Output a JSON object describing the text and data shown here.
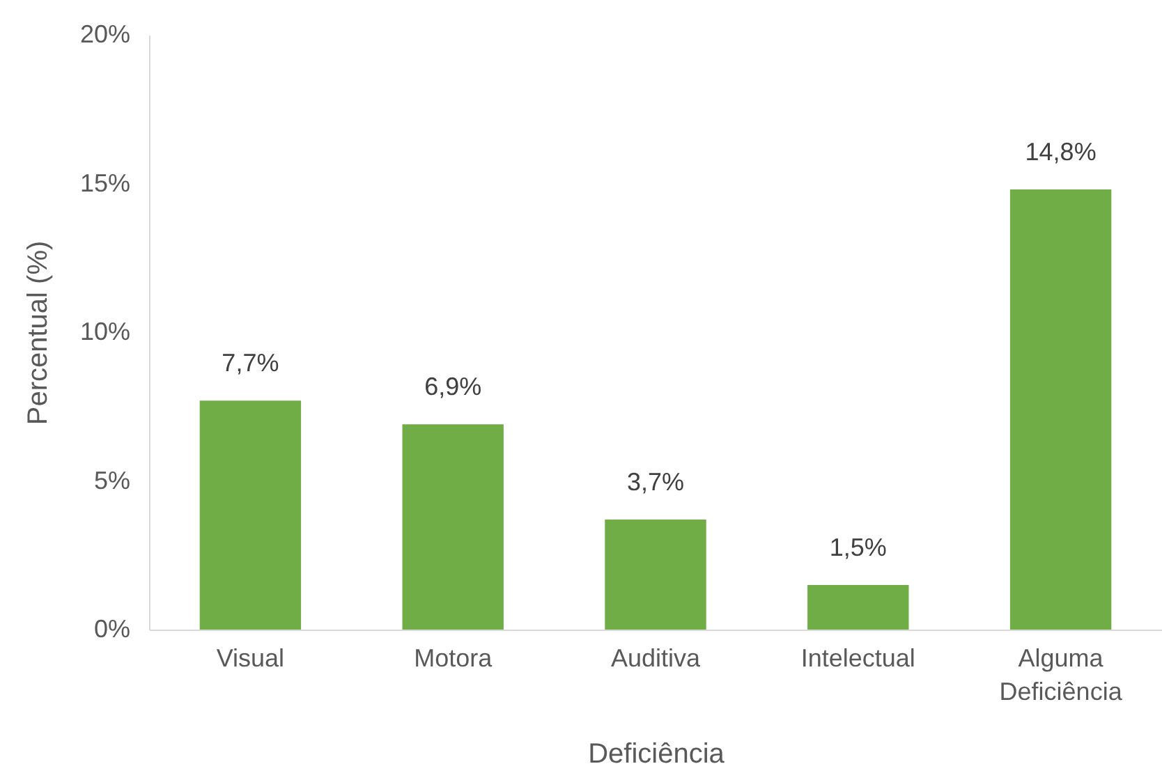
{
  "chart_data": {
    "type": "bar",
    "xlabel": "Deficiência",
    "ylabel": "Percentual (%)",
    "categories": [
      "Visual",
      "Motora",
      "Auditiva",
      "Intelectual",
      "Alguma Deficiência"
    ],
    "values": [
      7.7,
      6.9,
      3.7,
      1.5,
      14.8
    ],
    "value_labels": [
      "7,7%",
      "6,9%",
      "3,7%",
      "1,5%",
      "14,8%"
    ],
    "color": "#70ad47",
    "ylim": [
      0,
      20
    ],
    "yticks": [
      {
        "value": 0,
        "label": "0%"
      },
      {
        "value": 5,
        "label": "5%"
      },
      {
        "value": 10,
        "label": "10%"
      },
      {
        "value": 15,
        "label": "15%"
      },
      {
        "value": 20,
        "label": "20%"
      }
    ],
    "grid": false
  }
}
